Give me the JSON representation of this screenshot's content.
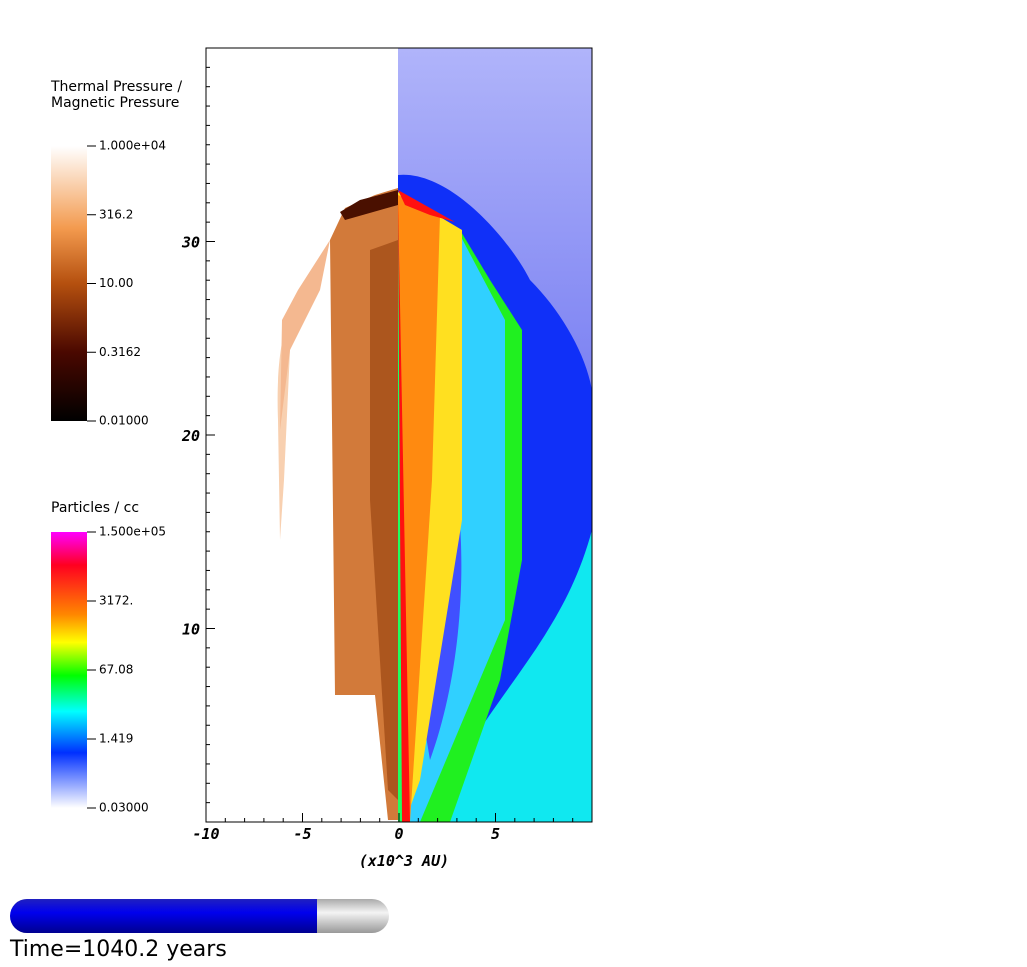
{
  "colorbars": [
    {
      "title": [
        "Thermal Pressure /",
        "Magnetic Pressure"
      ],
      "labels": [
        "1.000e+04",
        "316.2",
        "10.00",
        "0.3162",
        "0.01000"
      ]
    },
    {
      "title": [
        "Particles / cc"
      ],
      "labels": [
        "1.500e+05",
        "3172.",
        "67.08",
        "1.419",
        "0.03000"
      ]
    }
  ],
  "plot": {
    "xlim": [
      -10,
      10
    ],
    "ylim": [
      0,
      40
    ],
    "xticks": [
      -10,
      -5,
      0,
      5
    ],
    "yticks": [
      10,
      20,
      30
    ],
    "xlabel": "(x10^3 AU)"
  },
  "time": "Time=1040.2 years"
}
